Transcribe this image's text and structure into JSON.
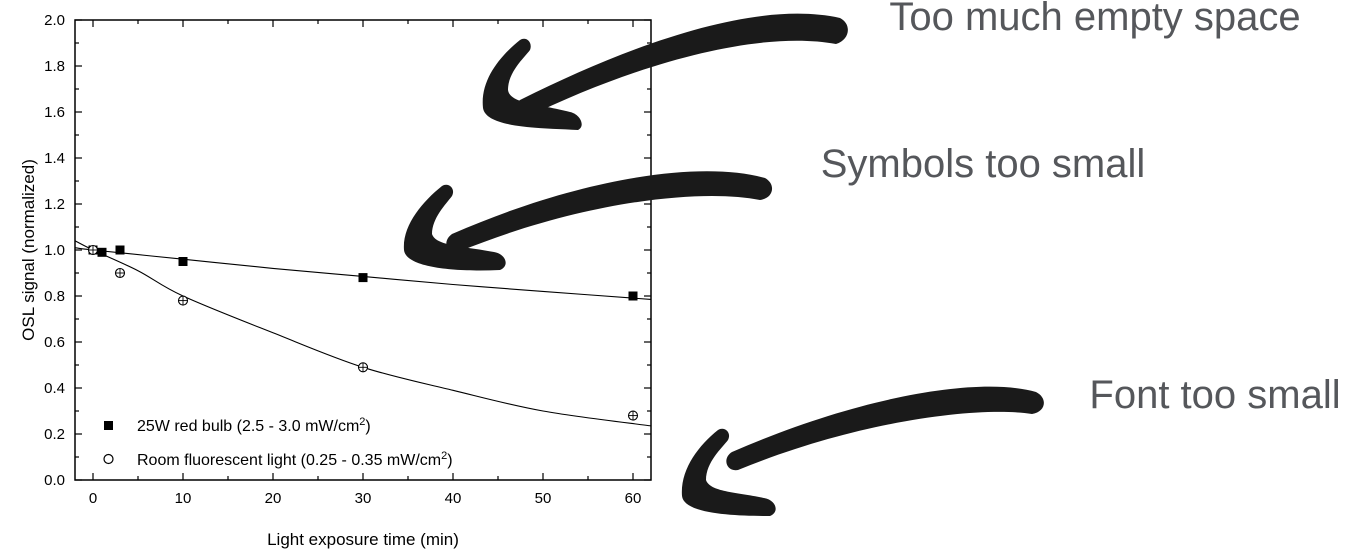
{
  "chart_data": {
    "type": "scatter",
    "xlabel": "Light exposure time (min)",
    "ylabel": "OSL signal (normalized)",
    "xlim": [
      -2,
      62
    ],
    "ylim": [
      0.0,
      2.0
    ],
    "xticks": [
      "0",
      "10",
      "20",
      "30",
      "40",
      "50",
      "60"
    ],
    "yticks": [
      "0.0",
      "0.2",
      "0.4",
      "0.6",
      "0.8",
      "1.0",
      "1.2",
      "1.4",
      "1.6",
      "1.8",
      "2.0"
    ],
    "grid": false,
    "legend_position": "bottom-left",
    "series": [
      {
        "name": "25W red bulb (2.5 - 3.0 mW/cm²)",
        "legend_main": "25W red bulb (2.5 - 3.0 mW/cm",
        "legend_sup": "2",
        "legend_tail": ")",
        "marker": "filled-square",
        "color": "#000000",
        "x": [
          0,
          1,
          3,
          10,
          30,
          60
        ],
        "y": [
          1.0,
          0.99,
          1.0,
          0.95,
          0.88,
          0.8
        ],
        "fit": [
          [
            -2,
            1.01
          ],
          [
            0,
            1.0
          ],
          [
            10,
            0.96
          ],
          [
            20,
            0.92
          ],
          [
            30,
            0.885
          ],
          [
            40,
            0.85
          ],
          [
            50,
            0.82
          ],
          [
            62,
            0.785
          ]
        ]
      },
      {
        "name": "Room fluorescent light (0.25 - 0.35 mW/cm²)",
        "legend_main": "Room fluorescent light (0.25 - 0.35 mW/cm",
        "legend_sup": "2",
        "legend_tail": ")",
        "marker": "open-circle",
        "color": "#000000",
        "x": [
          0,
          3,
          10,
          30,
          60
        ],
        "y": [
          1.0,
          0.9,
          0.78,
          0.49,
          0.28
        ],
        "fit": [
          [
            -2,
            1.04
          ],
          [
            0,
            1.0
          ],
          [
            5,
            0.91
          ],
          [
            10,
            0.8
          ],
          [
            20,
            0.64
          ],
          [
            30,
            0.49
          ],
          [
            40,
            0.39
          ],
          [
            50,
            0.3
          ],
          [
            62,
            0.235
          ]
        ]
      }
    ]
  },
  "annotations": [
    {
      "text": "Too much empty space"
    },
    {
      "text": "Symbols too small"
    },
    {
      "text": "Font too small"
    }
  ]
}
